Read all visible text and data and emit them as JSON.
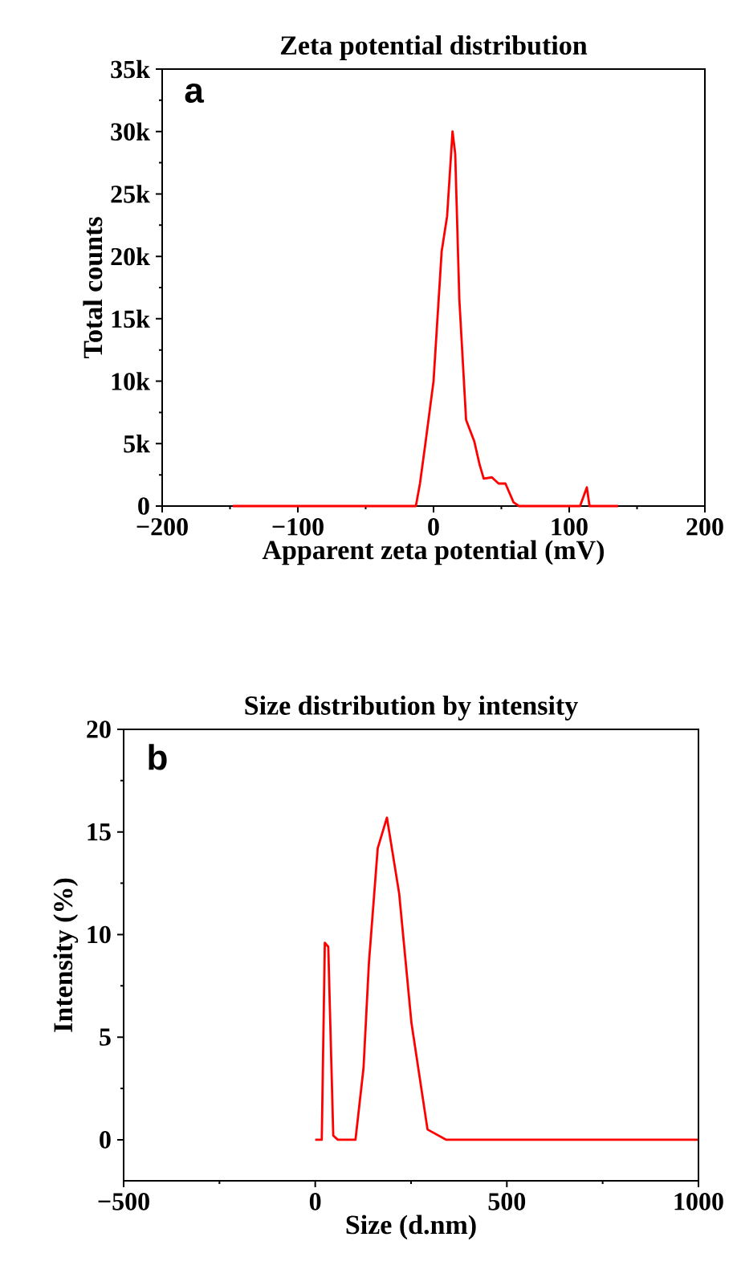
{
  "chart_data": [
    {
      "type": "line",
      "title": "Zeta potential distribution",
      "xlabel": "Apparent zeta potential (mV)",
      "ylabel": "Total counts",
      "annotations": [
        "a"
      ],
      "color": "#ff0000",
      "x": [
        -148,
        -13,
        -10,
        -6,
        0,
        6,
        10,
        14,
        16,
        19,
        24,
        30,
        34,
        37,
        43,
        48,
        53,
        59,
        63,
        108,
        113,
        115,
        136
      ],
      "values": [
        0,
        0,
        1800,
        5000,
        10000,
        20400,
        23200,
        30000,
        28200,
        16600,
        6900,
        5200,
        3300,
        2200,
        2300,
        1800,
        1800,
        300,
        0,
        0,
        1500,
        0,
        0
      ],
      "xlim": [
        -200,
        200
      ],
      "ylim": [
        0,
        35000
      ],
      "xticks": [
        {
          "value": -200,
          "label": "−200"
        },
        {
          "value": -100,
          "label": "−100"
        },
        0,
        100,
        200
      ],
      "yticks": [
        0,
        {
          "value": 5000,
          "label": "5k"
        },
        {
          "value": 10000,
          "label": "10k"
        },
        {
          "value": 15000,
          "label": "15k"
        },
        {
          "value": 20000,
          "label": "20k"
        },
        {
          "value": 25000,
          "label": "25k"
        },
        {
          "value": 30000,
          "label": "30k"
        },
        {
          "value": 35000,
          "label": "35k"
        }
      ]
    },
    {
      "type": "line",
      "title": "Size distribution by intensity",
      "xlabel": "Size (d.nm)",
      "ylabel": "Intensity (%)",
      "annotations": [
        "b"
      ],
      "color": "#ff0000",
      "x": [
        0,
        17,
        25,
        34,
        47,
        59,
        105,
        126,
        140,
        163,
        187,
        219,
        251,
        293,
        342,
        998
      ],
      "values": [
        0,
        0,
        9.6,
        9.4,
        0.2,
        0,
        0,
        3.5,
        8.6,
        14.2,
        15.7,
        12.0,
        5.7,
        0.5,
        0,
        0
      ],
      "xlim": [
        -500,
        1000
      ],
      "ylim": [
        -2,
        20
      ],
      "xticks": [
        {
          "value": -500,
          "label": "−500"
        },
        0,
        500,
        1000
      ],
      "yticks": [
        0,
        5,
        10,
        15,
        20
      ]
    }
  ]
}
